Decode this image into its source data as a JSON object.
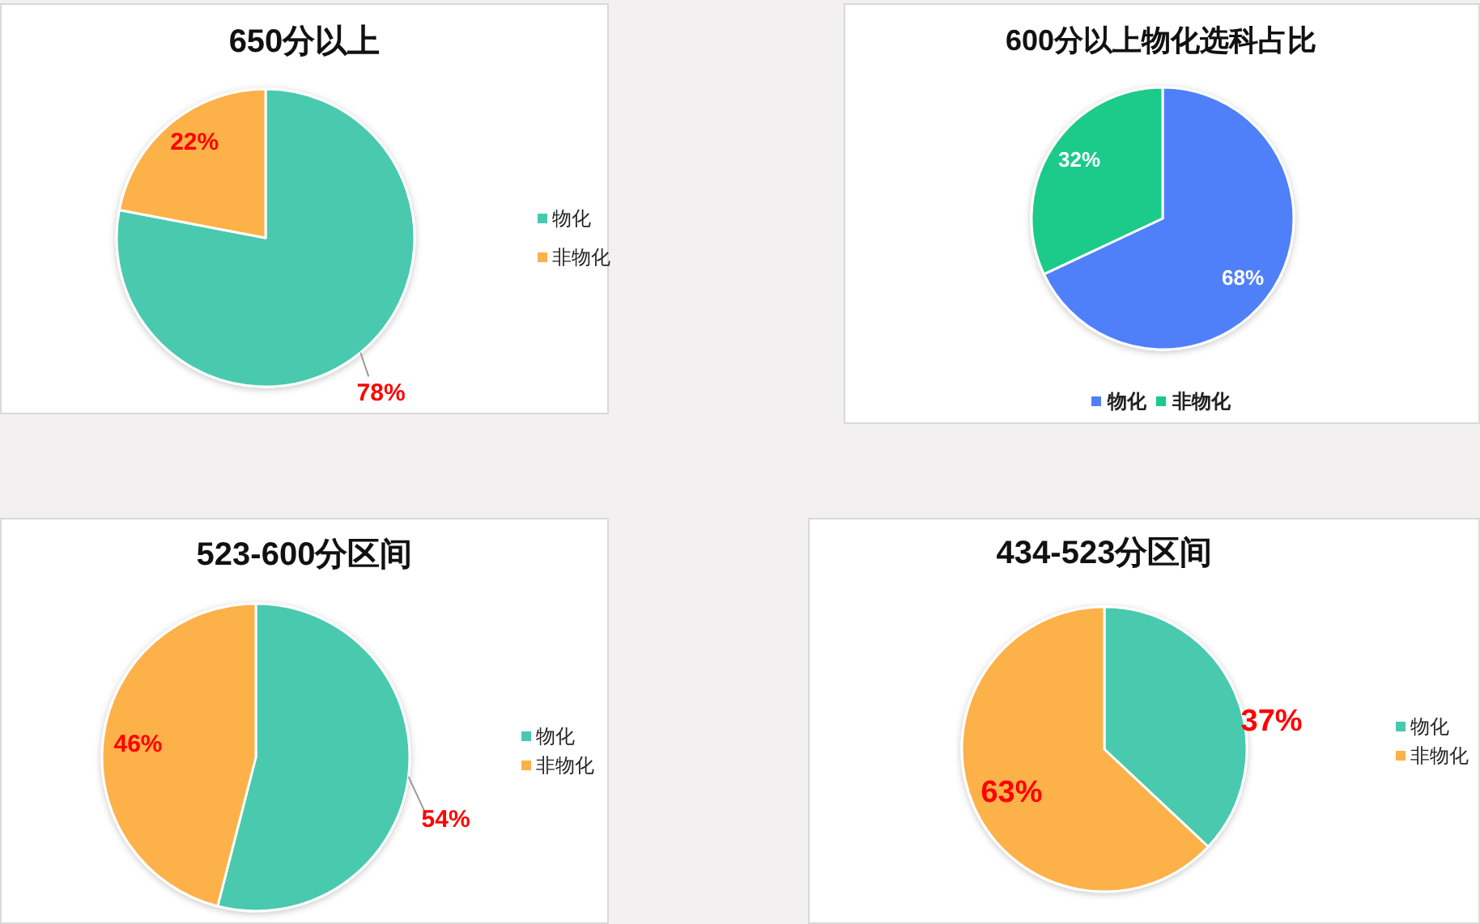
{
  "chart_data": [
    {
      "type": "pie",
      "title": "650分以上",
      "categories": [
        "物化",
        "非物化"
      ],
      "values": [
        78,
        22
      ],
      "colors": [
        "#48c9ae",
        "#fdb14a"
      ],
      "value_labels": [
        "78%",
        "22%"
      ],
      "legend": "right"
    },
    {
      "type": "pie",
      "title": "600分以上物化选科占比",
      "categories": [
        "物化",
        "非物化"
      ],
      "values": [
        68,
        32
      ],
      "colors": [
        "#4f80fa",
        "#1aca8a"
      ],
      "value_labels": [
        "68%",
        "32%"
      ],
      "legend": "bottom"
    },
    {
      "type": "pie",
      "title": "523-600分区间",
      "categories": [
        "物化",
        "非物化"
      ],
      "values": [
        54,
        46
      ],
      "colors": [
        "#48c9ae",
        "#fdb14a"
      ],
      "value_labels": [
        "54%",
        "46%"
      ],
      "legend": "right"
    },
    {
      "type": "pie",
      "title": "434-523分区间",
      "categories": [
        "物化",
        "非物化"
      ],
      "values": [
        37,
        63
      ],
      "colors": [
        "#48c9ae",
        "#fdb14a"
      ],
      "value_labels": [
        "37%",
        "63%"
      ],
      "legend": "right"
    }
  ]
}
